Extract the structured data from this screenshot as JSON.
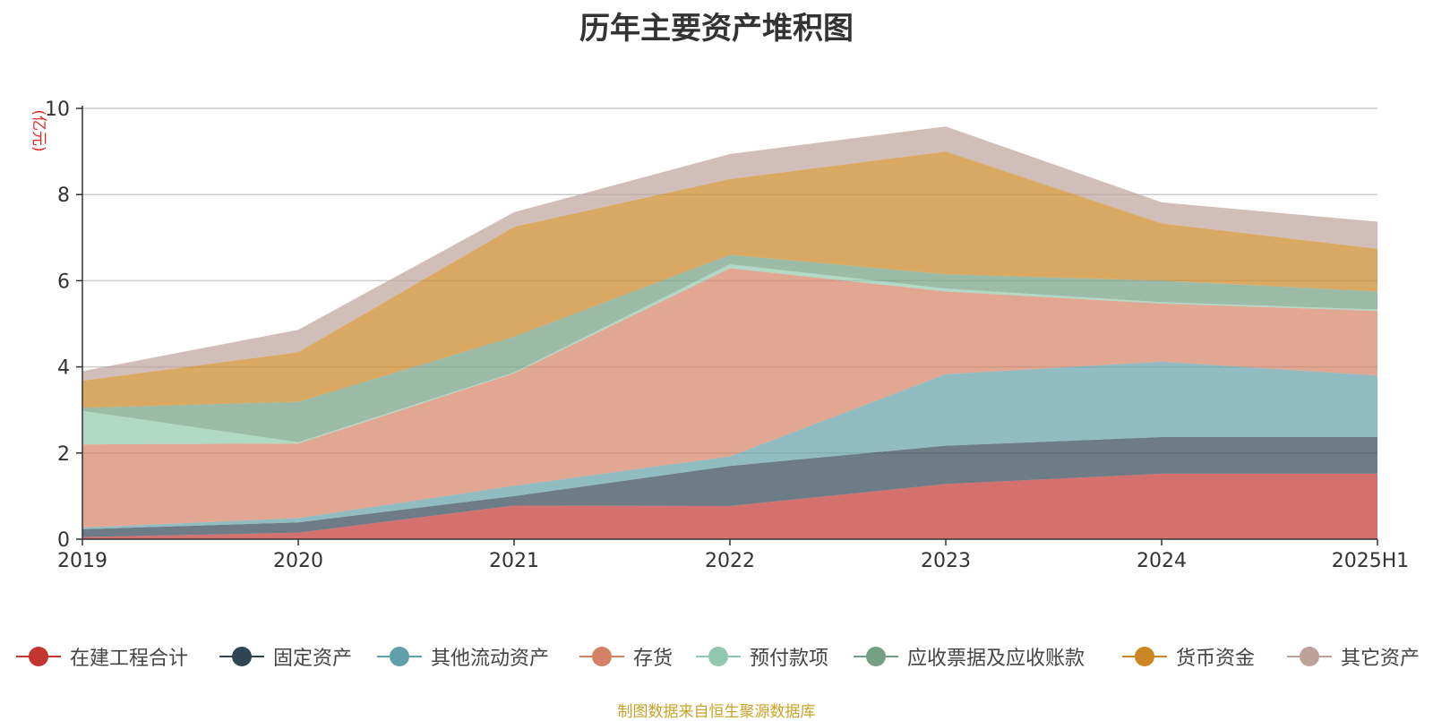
{
  "chart_data": {
    "type": "area",
    "stacked": true,
    "title": "历年主要资产堆积图",
    "ylabel": "(亿元)",
    "xlabel": "",
    "categories": [
      "2019",
      "2020",
      "2021",
      "2022",
      "2023",
      "2024",
      "2025H1"
    ],
    "ylim": [
      0,
      10
    ],
    "yticks": [
      "0",
      "2",
      "4",
      "6",
      "8",
      "10"
    ],
    "grid": true,
    "legend_position": "bottom",
    "series": [
      {
        "name": "在建工程合计",
        "color": "#c23531",
        "values": [
          0.05,
          0.15,
          0.78,
          0.77,
          1.28,
          1.52,
          1.52
        ]
      },
      {
        "name": "固定资产",
        "color": "#2f4554",
        "values": [
          0.18,
          0.24,
          0.22,
          0.93,
          0.89,
          0.85,
          0.85
        ]
      },
      {
        "name": "其他流动资产",
        "color": "#61a0a8",
        "values": [
          0.04,
          0.1,
          0.24,
          0.22,
          1.66,
          1.75,
          1.43
        ]
      },
      {
        "name": "存货",
        "color": "#d48265",
        "values": [
          1.93,
          1.73,
          2.61,
          4.37,
          1.92,
          1.35,
          1.5
        ]
      },
      {
        "name": "预付款项",
        "color": "#91c7ae",
        "values": [
          0.78,
          0.03,
          0.02,
          0.09,
          0.07,
          0.03,
          0.03
        ]
      },
      {
        "name": "应收票据及应收账款",
        "color": "#749f83",
        "values": [
          0.07,
          0.94,
          0.83,
          0.22,
          0.33,
          0.5,
          0.42
        ]
      },
      {
        "name": "货币资金",
        "color": "#ca8622",
        "values": [
          0.63,
          1.15,
          2.55,
          1.76,
          2.85,
          1.33,
          0.99
        ]
      },
      {
        "name": "其它资产",
        "color": "#bda29a",
        "values": [
          0.22,
          0.52,
          0.34,
          0.58,
          0.58,
          0.49,
          0.63
        ]
      }
    ],
    "source_note": "制图数据来自恒生聚源数据库"
  }
}
